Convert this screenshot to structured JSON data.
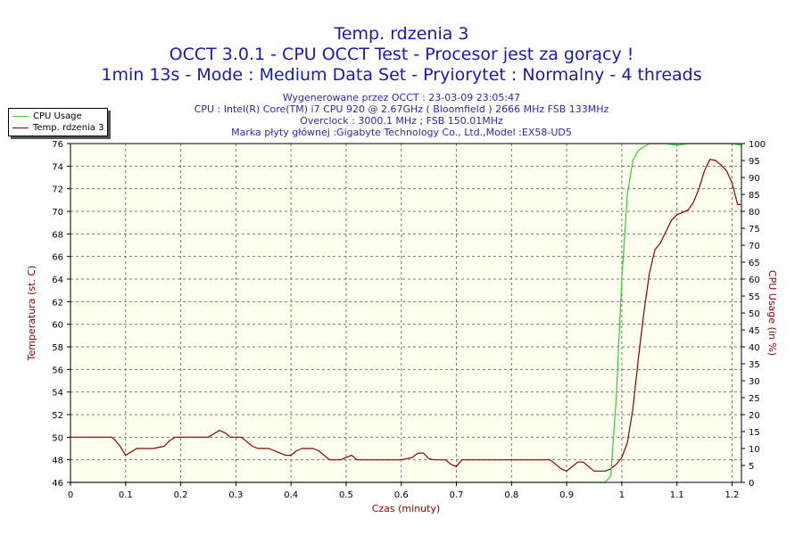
{
  "title_lines": [
    "Temp. rdzenia 3",
    "OCCT 3.0.1 - CPU OCCT Test - Procesor jest za gorący !",
    "1min 13s - Mode : Medium Data Set - Pryiorytet : Normalny - 4 threads"
  ],
  "info_lines": [
    "Wygenerowane przez OCCT : 23-03-09 23:05:47",
    "CPU : Intel(R) Core(TM) i7 CPU 920 @ 2.67GHz ( Bloomfield ) 2666 MHz FSB 133MHz",
    "Overclock : 3000.1 MHz ; FSB 150.01MHz",
    "Marka płyty głównej :Gigabyte Technology Co., Ltd.,Model :EX58-UD5"
  ],
  "legend": {
    "cpu_usage": "CPU Usage",
    "temp": "Temp. rdzenia 3"
  },
  "colors": {
    "plot_bg": "#FFFFF0",
    "temp_line": "#8B0000",
    "usage_line": "#33CC33",
    "title": "#1a1aaa",
    "info": "#2a2aaa",
    "axis_label": "#8B0000"
  },
  "chart_data": {
    "type": "line",
    "xlabel": "Czas (minuty)",
    "ylabel": "Temperatura (st. C)",
    "ylabel_right": "CPU Usage (in %)",
    "xlim": [
      0,
      1.217
    ],
    "ylim": [
      46,
      76
    ],
    "ylim_right": [
      0,
      100
    ],
    "x_ticks": [
      "0",
      "0.1",
      "0.2",
      "0.3",
      "0.4",
      "0.5",
      "0.6",
      "0.7",
      "0.8",
      "0.9",
      "1",
      "1.1",
      "1.2"
    ],
    "y_ticks": [
      "46",
      "48",
      "50",
      "52",
      "54",
      "56",
      "58",
      "60",
      "62",
      "64",
      "66",
      "68",
      "70",
      "72",
      "74",
      "76"
    ],
    "y_ticks_right": [
      "0",
      "5",
      "10",
      "15",
      "20",
      "25",
      "30",
      "35",
      "40",
      "45",
      "50",
      "55",
      "60",
      "65",
      "70",
      "75",
      "80",
      "85",
      "90",
      "95",
      "100"
    ],
    "grid": true,
    "legend_position": "top-left",
    "series": [
      {
        "name": "Temp. rdzenia 3",
        "axis": "left",
        "x": [
          0,
          0.075,
          0.08,
          0.09,
          0.1,
          0.12,
          0.15,
          0.17,
          0.18,
          0.19,
          0.2,
          0.25,
          0.26,
          0.27,
          0.28,
          0.29,
          0.31,
          0.33,
          0.34,
          0.36,
          0.38,
          0.39,
          0.4,
          0.41,
          0.42,
          0.44,
          0.45,
          0.46,
          0.47,
          0.48,
          0.49,
          0.5,
          0.51,
          0.52,
          0.55,
          0.6,
          0.62,
          0.63,
          0.64,
          0.65,
          0.66,
          0.68,
          0.69,
          0.7,
          0.71,
          0.75,
          0.8,
          0.85,
          0.87,
          0.88,
          0.89,
          0.9,
          0.91,
          0.92,
          0.93,
          0.94,
          0.95,
          0.96,
          0.97,
          0.98,
          0.99,
          1.0,
          1.01,
          1.02,
          1.03,
          1.04,
          1.05,
          1.06,
          1.07,
          1.08,
          1.09,
          1.1,
          1.11,
          1.12,
          1.13,
          1.14,
          1.15,
          1.16,
          1.17,
          1.18,
          1.19,
          1.2,
          1.21,
          1.217
        ],
        "values": [
          50,
          50,
          49.8,
          49.2,
          48.4,
          49,
          49,
          49.2,
          49.7,
          50,
          50,
          50,
          50.3,
          50.6,
          50.4,
          50,
          50,
          49.2,
          49,
          49,
          48.6,
          48.4,
          48.4,
          48.8,
          49,
          49,
          48.8,
          48.4,
          48,
          48,
          48,
          48.2,
          48.4,
          48,
          48,
          48,
          48.2,
          48.6,
          48.6,
          48.1,
          48,
          48,
          47.6,
          47.4,
          48,
          48,
          48,
          48,
          48,
          47.6,
          47.2,
          47,
          47.4,
          47.8,
          47.8,
          47.4,
          47,
          47,
          47,
          47.2,
          47.6,
          48.2,
          49.5,
          52.5,
          57,
          61,
          64.5,
          66.6,
          67.2,
          68.2,
          69.2,
          69.7,
          69.9,
          70.1,
          70.8,
          72,
          73.6,
          74.6,
          74.5,
          74.1,
          73.6,
          72.5,
          70.6,
          70.6
        ]
      },
      {
        "name": "CPU Usage",
        "axis": "right",
        "x": [
          0,
          0.97,
          0.98,
          0.99,
          1.0,
          1.01,
          1.02,
          1.03,
          1.04,
          1.05,
          1.06,
          1.08,
          1.1,
          1.12,
          1.14,
          1.16,
          1.18,
          1.2,
          1.217
        ],
        "values": [
          0,
          0,
          2,
          25,
          60,
          85,
          95,
          98,
          99,
          100,
          100,
          100,
          99.5,
          100,
          100,
          100,
          100,
          100,
          99.5
        ]
      }
    ]
  }
}
